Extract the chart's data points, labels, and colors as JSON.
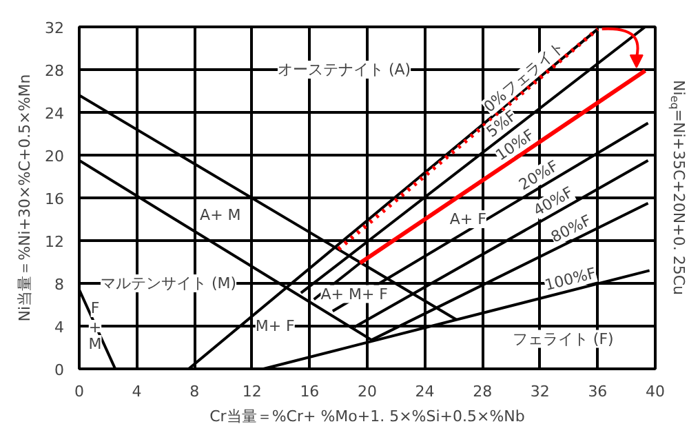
{
  "chart_data": {
    "type": "line",
    "xlabel": "Cr当量＝%Cr+ %Mo+1. 5×%Si+0.5×%Nb",
    "ylabel": "Ni当量＝%Ni+30×%C+0.5×%Mn",
    "y2label": "Ni$_{eq}$=Ni+35C+20N+0. 25Cu",
    "xlim": [
      0,
      40
    ],
    "ylim": [
      0,
      32
    ],
    "xticks": [
      0,
      4,
      8,
      12,
      16,
      20,
      24,
      28,
      32,
      36,
      40
    ],
    "yticks": [
      0,
      4,
      8,
      12,
      16,
      20,
      24,
      28,
      32
    ],
    "grid": true,
    "marker": "none",
    "series": [
      {
        "color": "#000000",
        "x": [
          0,
          26.2
        ],
        "values": [
          25.6,
          4.6
        ]
      },
      {
        "color": "#000000",
        "x": [
          0,
          20.3
        ],
        "values": [
          19.5,
          2.7
        ]
      },
      {
        "color": "#000000",
        "x": [
          0,
          2.5
        ],
        "values": [
          7.4,
          0
        ]
      },
      {
        "color": "#000000",
        "x": [
          7.6,
          36
        ],
        "values": [
          0,
          31.8
        ]
      },
      {
        "name": "0%フェライト",
        "color": "#ff0000",
        "line_style": "dotted",
        "x": [
          18,
          36
        ],
        "values": [
          11.2,
          31.8
        ]
      },
      {
        "name": "5%F",
        "color": "#000000",
        "x": [
          15.4,
          39.3
        ],
        "values": [
          7.1,
          32
        ]
      },
      {
        "color": "#000000",
        "x": [
          16.3,
          19.5
        ],
        "values": [
          6.5,
          9.9
        ]
      },
      {
        "name": "10%F",
        "color": "#ff0000",
        "x": [
          19.5,
          39.3
        ],
        "values": [
          9.9,
          27.9
        ]
      },
      {
        "name": "20%F",
        "color": "#000000",
        "x": [
          17.6,
          39.5
        ],
        "values": [
          5.4,
          23
        ]
      },
      {
        "name": "40%F",
        "color": "#000000",
        "x": [
          19.1,
          39.5
        ],
        "values": [
          3.9,
          19.5
        ]
      },
      {
        "name": "80%F",
        "color": "#000000",
        "x": [
          20.3,
          39.5
        ],
        "values": [
          2.7,
          15.5
        ]
      },
      {
        "name": "100%F",
        "color": "#000000",
        "x": [
          12.8,
          39.6
        ],
        "values": [
          0,
          9.2
        ]
      }
    ],
    "annotations": [
      "オーステナイト (A)",
      {
        "text": "A+ M",
        "x": 9.8,
        "y": 14.4
      },
      "マルテンサイト (M)",
      {
        "text": "F\n+\nM",
        "x": 1.1,
        "y": 4
      },
      {
        "text": "M+ F",
        "x": 13.6,
        "y": 4
      },
      {
        "text": "A+ M+ F",
        "x": 19.1,
        "y": 7
      },
      {
        "text": "A+ F",
        "x": 27,
        "y": 14
      },
      "フェライト (F)"
    ]
  }
}
